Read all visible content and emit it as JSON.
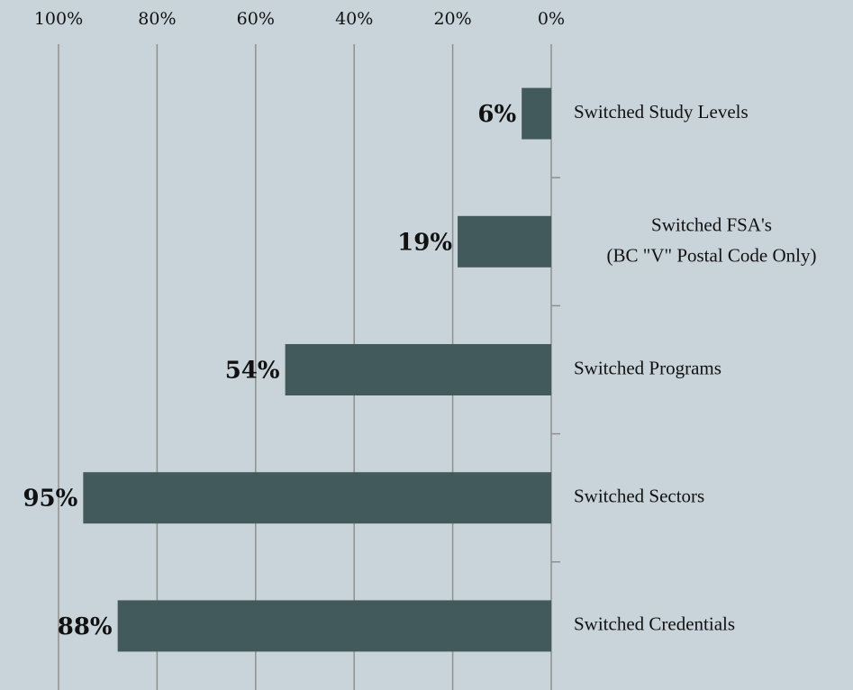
{
  "chart_data": {
    "type": "bar",
    "orientation": "horizontal",
    "reversed": true,
    "categories": [
      "Switched Study Levels",
      "Switched FSA's\n(BC \"V\" Postal Code Only)",
      "Switched Programs",
      "Switched Sectors",
      "Switched Credentials"
    ],
    "values": [
      6,
      19,
      54,
      95,
      88
    ],
    "value_labels": [
      "6%",
      "19%",
      "54%",
      "95%",
      "88%"
    ],
    "color": "#435a5c",
    "xlim": [
      0,
      100
    ],
    "xticks": [
      {
        "value": 100,
        "label": "100%"
      },
      {
        "value": 80,
        "label": "80%"
      },
      {
        "value": 60,
        "label": "60%"
      },
      {
        "value": 40,
        "label": "40%"
      },
      {
        "value": 20,
        "label": "20%"
      },
      {
        "value": 0,
        "label": "0%"
      }
    ],
    "grid": true
  }
}
